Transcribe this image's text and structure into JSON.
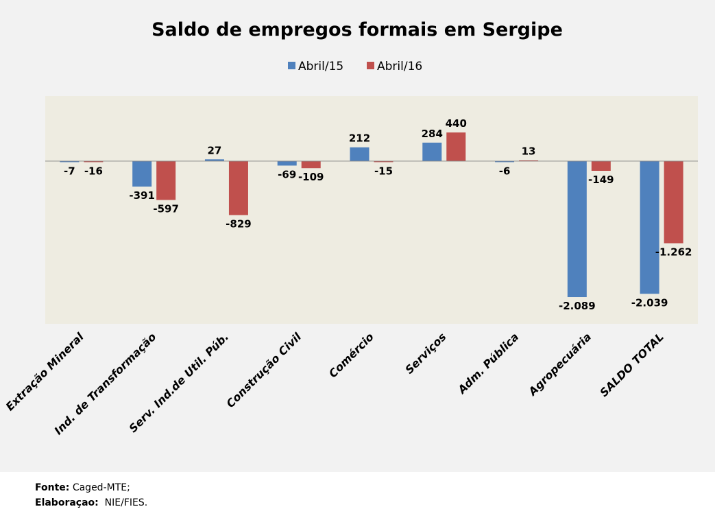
{
  "chart_data": {
    "type": "bar",
    "title": "Saldo de empregos formais em Sergipe",
    "xlabel": "",
    "ylabel": "",
    "ylim": [
      -2500,
      1000
    ],
    "grid": false,
    "legend_position": "top-center",
    "categories": [
      "Extração Mineral",
      "Ind. de Transformação",
      "Serv. Ind.de Util. Púb.",
      "Construção Civil",
      "Comércio",
      "Serviços",
      "Adm. Pública",
      "Agropecuária",
      "SALDO TOTAL"
    ],
    "series": [
      {
        "name": "Abril/15",
        "color": "#4f81bd",
        "values": [
          -7,
          -391,
          27,
          -69,
          212,
          284,
          -6,
          -2089,
          -2039
        ],
        "labels": [
          "-7",
          "-391",
          "27",
          "-69",
          "212",
          "284",
          "-6",
          "-2.089",
          "-2.039"
        ]
      },
      {
        "name": "Abril/16",
        "color": "#c0504d",
        "values": [
          -16,
          -597,
          -829,
          -109,
          -15,
          440,
          13,
          -149,
          -1262
        ],
        "labels": [
          "-16",
          "-597",
          "-829",
          "-109",
          "-15",
          "440",
          "13",
          "-149",
          "-1.262"
        ]
      }
    ]
  },
  "footer": {
    "source_label": "Fonte:",
    "source_value": "Caged-MTE;",
    "credit_label": "Elaboraçao:",
    "credit_value": "NIE/FIES."
  }
}
